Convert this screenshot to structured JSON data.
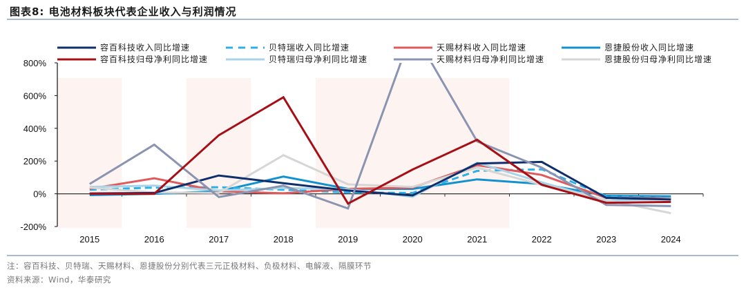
{
  "header": {
    "title": "图表8:  电池材料板块代表企业收入与利润情况"
  },
  "footer": {
    "note": "注：容百科技、贝特瑞、天赐材料、恩捷股份分别代表三元正极材料、负极材料、电解液、隔膜环节",
    "source": "资料来源：Wind，华泰研究"
  },
  "chart_data": {
    "type": "line",
    "title": "电池材料板块代表企业收入与利润情况",
    "xlabel": "",
    "ylabel": "",
    "categories": [
      "2015",
      "2016",
      "2017",
      "2018",
      "2019",
      "2020",
      "2021",
      "2022",
      "2023",
      "2024"
    ],
    "ylim": [
      -200,
      800
    ],
    "yticks": [
      -200,
      0,
      200,
      400,
      600,
      800
    ],
    "ytick_labels": [
      "-200%",
      "0%",
      "200%",
      "400%",
      "600%",
      "800%"
    ],
    "grid": false,
    "legend_position": "top",
    "shaded_periods": [
      [
        "2015",
        "2015"
      ],
      [
        "2017",
        "2017"
      ],
      [
        "2019",
        "2021"
      ]
    ],
    "shade_color": "#fdf3f0",
    "series": [
      {
        "name": "容百科技收入同比增速",
        "color": "#0e2f6b",
        "dash": false,
        "values": [
          2,
          5,
          112,
          65,
          20,
          -10,
          185,
          195,
          -25,
          -35
        ]
      },
      {
        "name": "容百科技归母净利同比增速",
        "color": "#a50f15",
        "dash": false,
        "values": [
          0,
          0,
          358,
          590,
          -60,
          148,
          330,
          55,
          -55,
          -50
        ]
      },
      {
        "name": "贝特瑞收入同比增速",
        "color": "#2bb0e8",
        "dash": true,
        "values": [
          25,
          38,
          40,
          25,
          8,
          5,
          140,
          150,
          -15,
          -25
        ]
      },
      {
        "name": "贝特瑞归母净利同比增速",
        "color": "#a9d3e6",
        "dash": false,
        "values": [
          42,
          50,
          20,
          35,
          28,
          -18,
          190,
          70,
          -42,
          -30
        ]
      },
      {
        "name": "天赐材料收入同比增速",
        "color": "#e05a5c",
        "dash": false,
        "values": [
          30,
          95,
          15,
          3,
          30,
          38,
          175,
          115,
          -25,
          -28
        ]
      },
      {
        "name": "天赐材料归母净利同比增速",
        "color": "#8a93b0",
        "dash": false,
        "values": [
          60,
          300,
          -20,
          50,
          -90,
          1000,
          320,
          160,
          -68,
          -75
        ]
      },
      {
        "name": "恩捷股份收入同比增速",
        "color": "#1291d0",
        "dash": false,
        "values": [
          -8,
          0,
          15,
          105,
          30,
          30,
          88,
          60,
          -12,
          -15
        ]
      },
      {
        "name": "恩捷股份归母净利同比增速",
        "color": "#d6d6d6",
        "dash": false,
        "values": [
          38,
          8,
          5,
          236,
          58,
          42,
          160,
          55,
          -38,
          -118
        ]
      }
    ]
  }
}
